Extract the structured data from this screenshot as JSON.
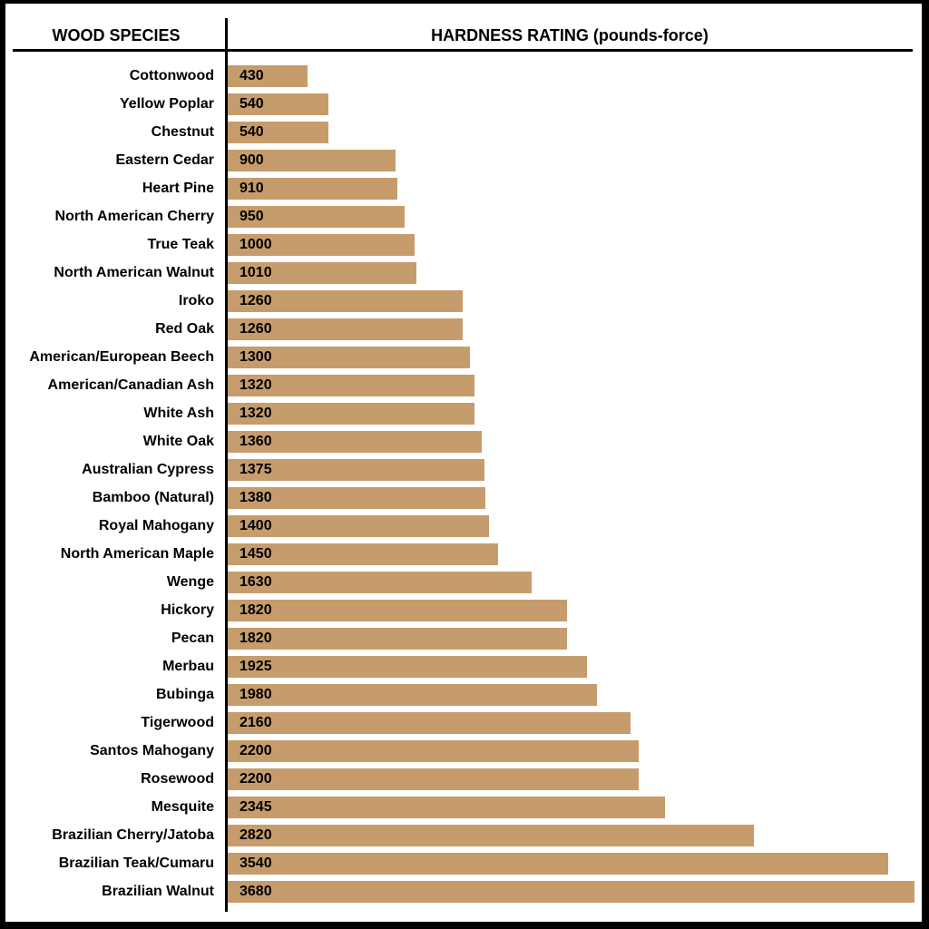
{
  "headers": {
    "species": "WOOD SPECIES",
    "hardness": "HARDNESS RATING (pounds-force)"
  },
  "colors": {
    "bar": "#c69c6d",
    "border": "#000000",
    "background": "#ffffff"
  },
  "chart_data": {
    "type": "bar",
    "orientation": "horizontal",
    "xlim": [
      0,
      3680
    ],
    "categories": [
      "Cottonwood",
      "Yellow Poplar",
      "Chestnut",
      "Eastern Cedar",
      "Heart Pine",
      "North American Cherry",
      "True Teak",
      "North American Walnut",
      "Iroko",
      "Red Oak",
      "American/European Beech",
      "American/Canadian Ash",
      "White Ash",
      "White Oak",
      "Australian Cypress",
      "Bamboo (Natural)",
      "Royal Mahogany",
      "North American Maple",
      "Wenge",
      "Hickory",
      "Pecan",
      "Merbau",
      "Bubinga",
      "Tigerwood",
      "Santos Mahogany",
      "Rosewood",
      "Mesquite",
      "Brazilian Cherry/Jatoba",
      "Brazilian Teak/Cumaru",
      "Brazilian Walnut"
    ],
    "values": [
      430,
      540,
      540,
      900,
      910,
      950,
      1000,
      1010,
      1260,
      1260,
      1300,
      1320,
      1320,
      1360,
      1375,
      1380,
      1400,
      1450,
      1630,
      1820,
      1820,
      1925,
      1980,
      2160,
      2200,
      2200,
      2345,
      2820,
      3540,
      3680
    ]
  }
}
